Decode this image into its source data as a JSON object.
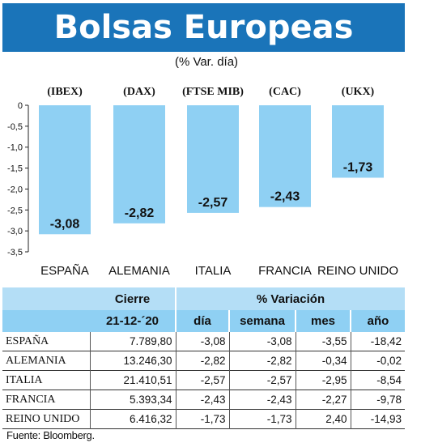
{
  "title": "Bolsas Europeas",
  "subtitle": "(% Var. día)",
  "chart_data": {
    "type": "bar",
    "categories": [
      "ESPAÑA",
      "ALEMANIA",
      "ITALIA",
      "FRANCIA",
      "REINO UNIDO"
    ],
    "index_labels": [
      "(IBEX)",
      "(DAX)",
      "(FTSE MIB)",
      "(CAC)",
      "(UKX)"
    ],
    "values": [
      -3.08,
      -2.82,
      -2.57,
      -2.43,
      -1.73
    ],
    "value_labels": [
      "-3,08",
      "-2,82",
      "-2,57",
      "-2,43",
      "-1,73"
    ],
    "y_ticks": [
      "0",
      "-0,5",
      "-1,0",
      "-1,5",
      "-2,0",
      "-2,5",
      "-3,0",
      "-3,5"
    ],
    "ylim": [
      -3.5,
      0
    ],
    "bar_color": "#8fd0f3"
  },
  "table": {
    "header1": [
      "Cierre",
      "% Variación"
    ],
    "header2": [
      "21-12-´20",
      "día",
      "semana",
      "mes",
      "año"
    ],
    "rows": [
      [
        "ESPAÑA",
        "7.789,80",
        "-3,08",
        "-3,08",
        "-3,55",
        "-18,42"
      ],
      [
        "ALEMANIA",
        "13.246,30",
        "-2,82",
        "-2,82",
        "-0,34",
        "-0,02"
      ],
      [
        "ITALIA",
        "21.410,51",
        "-2,57",
        "-2,57",
        "-2,95",
        "-8,54"
      ],
      [
        "FRANCIA",
        "5.393,34",
        "-2,43",
        "-2,43",
        "-2,27",
        "-9,78"
      ],
      [
        "REINO UNIDO",
        "6.416,32",
        "-1,73",
        "-1,73",
        "2,40",
        "-14,93"
      ]
    ]
  },
  "source": "Fuente: Bloomberg."
}
